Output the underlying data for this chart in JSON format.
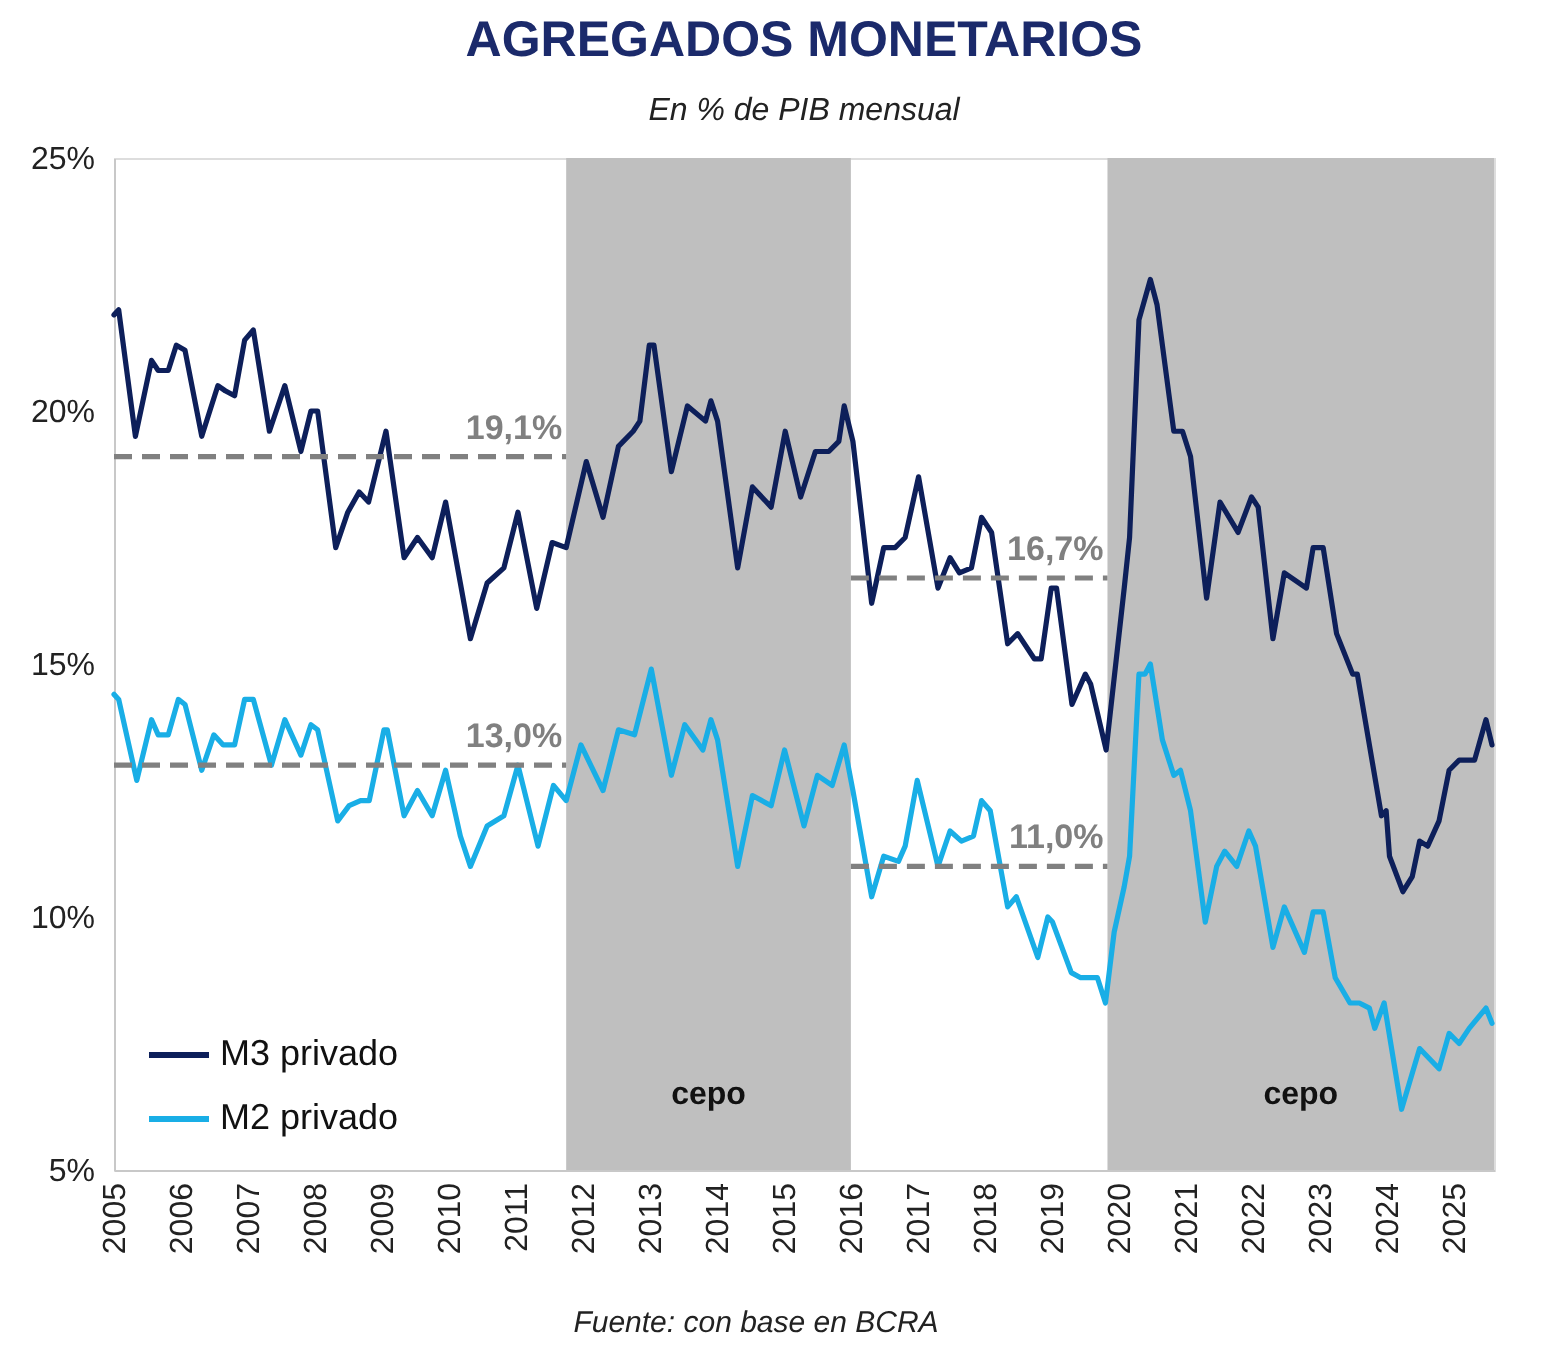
{
  "chart_data": {
    "type": "line",
    "title": "AGREGADOS MONETARIOS",
    "subtitle": "En % de PIB mensual",
    "annotations": [
      "Fuente: con base en BCRA"
    ],
    "xlim": [
      2005,
      2025.6
    ],
    "xticks": [
      2005,
      2006,
      2007,
      2008,
      2009,
      2010,
      2011,
      2012,
      2013,
      2014,
      2015,
      2016,
      2017,
      2018,
      2019,
      2020,
      2021,
      2022,
      2023,
      2024,
      2025
    ],
    "ylim": [
      5,
      25
    ],
    "yticks": [
      {
        "value": 5,
        "label": "5%"
      },
      {
        "value": 10,
        "label": "10%"
      },
      {
        "value": 15,
        "label": "15%"
      },
      {
        "value": 20,
        "label": "20%"
      },
      {
        "value": 25,
        "label": "25%"
      }
    ],
    "legend": "bottom left",
    "bands": [
      {
        "axis": "x",
        "from": 2011.75,
        "to": 2016.0,
        "label": "cepo",
        "color": "#bfbfbf"
      },
      {
        "axis": "x",
        "from": 2019.83,
        "to": 2025.6,
        "label": "cepo",
        "color": "#bfbfbf"
      }
    ],
    "series": [
      {
        "name": "M3 privado",
        "color": "#0d1f5a",
        "x": [
          2005.0,
          2005.07,
          2005.32,
          2005.56,
          2005.66,
          2005.81,
          2005.93,
          2006.06,
          2006.31,
          2006.55,
          2006.66,
          2006.8,
          2006.95,
          2007.08,
          2007.32,
          2007.55,
          2007.79,
          2007.94,
          2008.04,
          2008.31,
          2008.49,
          2008.66,
          2008.8,
          2009.06,
          2009.33,
          2009.53,
          2009.75,
          2009.95,
          2010.17,
          2010.32,
          2010.57,
          2010.82,
          2011.03,
          2011.31,
          2011.54,
          2011.75,
          2012.05,
          2012.3,
          2012.53,
          2012.75,
          2012.85,
          2012.99,
          2013.06,
          2013.32,
          2013.56,
          2013.83,
          2013.91,
          2014.01,
          2014.31,
          2014.53,
          2014.81,
          2015.02,
          2015.25,
          2015.47,
          2015.67,
          2015.82,
          2015.9,
          2016.03,
          2016.31,
          2016.49,
          2016.66,
          2016.81,
          2017.01,
          2017.3,
          2017.48,
          2017.62,
          2017.8,
          2017.95,
          2018.1,
          2018.34,
          2018.49,
          2018.74,
          2018.84,
          2018.99,
          2019.07,
          2019.3,
          2019.5,
          2019.58,
          2019.81,
          2020.08,
          2020.16,
          2020.3,
          2020.47,
          2020.57,
          2020.82,
          2020.95,
          2021.07,
          2021.31,
          2021.51,
          2021.78,
          2021.98,
          2022.08,
          2022.3,
          2022.47,
          2022.8,
          2022.9,
          2023.05,
          2023.25,
          2023.49,
          2023.56,
          2023.92,
          2023.99,
          2024.04,
          2024.24,
          2024.38,
          2024.49,
          2024.61,
          2024.78,
          2024.93,
          2025.08,
          2025.21,
          2025.31,
          2025.48,
          2025.57
        ],
        "values": [
          21.9,
          22.0,
          19.5,
          21.0,
          20.8,
          20.8,
          21.3,
          21.2,
          19.5,
          20.5,
          20.4,
          20.3,
          21.4,
          21.6,
          19.6,
          20.5,
          19.2,
          20.0,
          20.0,
          17.3,
          18.0,
          18.4,
          18.2,
          19.6,
          17.1,
          17.5,
          17.1,
          18.2,
          16.6,
          15.5,
          16.6,
          16.9,
          18.0,
          16.1,
          17.4,
          17.3,
          19.0,
          17.9,
          19.3,
          19.6,
          19.8,
          21.3,
          21.3,
          18.8,
          20.1,
          19.8,
          20.2,
          19.8,
          16.9,
          18.5,
          18.1,
          19.6,
          18.3,
          19.2,
          19.2,
          19.4,
          20.1,
          19.4,
          16.2,
          17.3,
          17.3,
          17.5,
          18.7,
          16.5,
          17.1,
          16.8,
          16.9,
          17.9,
          17.6,
          15.4,
          15.6,
          15.1,
          15.1,
          16.5,
          16.5,
          14.2,
          14.8,
          14.6,
          13.3,
          16.5,
          17.5,
          21.8,
          22.6,
          22.1,
          19.6,
          19.6,
          19.1,
          16.3,
          18.2,
          17.6,
          18.3,
          18.1,
          15.5,
          16.8,
          16.5,
          17.3,
          17.3,
          15.6,
          14.8,
          14.8,
          12.0,
          12.1,
          11.2,
          10.5,
          10.8,
          11.5,
          11.4,
          11.9,
          12.9,
          13.1,
          13.1,
          13.1,
          13.9,
          13.4
        ]
      },
      {
        "name": "M2 privado",
        "color": "#19aee6",
        "x": [
          2005.0,
          2005.07,
          2005.34,
          2005.56,
          2005.66,
          2005.81,
          2005.96,
          2006.06,
          2006.31,
          2006.49,
          2006.63,
          2006.8,
          2006.95,
          2007.08,
          2007.35,
          2007.55,
          2007.79,
          2007.94,
          2008.04,
          2008.34,
          2008.51,
          2008.68,
          2008.81,
          2009.03,
          2009.08,
          2009.33,
          2009.53,
          2009.75,
          2009.95,
          2010.17,
          2010.32,
          2010.57,
          2010.82,
          2011.03,
          2011.33,
          2011.56,
          2011.75,
          2011.97,
          2012.3,
          2012.53,
          2012.77,
          2013.02,
          2013.32,
          2013.52,
          2013.79,
          2013.91,
          2014.01,
          2014.31,
          2014.53,
          2014.81,
          2015.01,
          2015.3,
          2015.5,
          2015.72,
          2015.9,
          2016.03,
          2016.31,
          2016.49,
          2016.71,
          2016.81,
          2016.99,
          2017.3,
          2017.48,
          2017.65,
          2017.83,
          2017.95,
          2018.08,
          2018.34,
          2018.47,
          2018.79,
          2018.94,
          2019.01,
          2019.29,
          2019.43,
          2019.58,
          2019.68,
          2019.8,
          2019.93,
          2020.08,
          2020.16,
          2020.3,
          2020.39,
          2020.47,
          2020.65,
          2020.82,
          2020.92,
          2021.07,
          2021.29,
          2021.46,
          2021.58,
          2021.76,
          2021.94,
          2022.04,
          2022.3,
          2022.47,
          2022.77,
          2022.9,
          2023.05,
          2023.23,
          2023.45,
          2023.59,
          2023.74,
          2023.82,
          2023.96,
          2024.22,
          2024.49,
          2024.78,
          2024.93,
          2025.08,
          2025.23,
          2025.48,
          2025.57
        ],
        "values": [
          14.4,
          14.3,
          12.7,
          13.9,
          13.6,
          13.6,
          14.3,
          14.2,
          12.9,
          13.6,
          13.4,
          13.4,
          14.3,
          14.3,
          13.0,
          13.9,
          13.2,
          13.8,
          13.7,
          11.9,
          12.2,
          12.3,
          12.3,
          13.7,
          13.7,
          12.0,
          12.5,
          12.0,
          12.9,
          11.6,
          11.0,
          11.8,
          12.0,
          13.0,
          11.4,
          12.6,
          12.3,
          13.4,
          12.5,
          13.7,
          13.6,
          14.9,
          12.8,
          13.8,
          13.3,
          13.9,
          13.5,
          11.0,
          12.4,
          12.2,
          13.3,
          11.8,
          12.8,
          12.6,
          13.4,
          12.5,
          10.4,
          11.2,
          11.1,
          11.4,
          12.7,
          11.0,
          11.7,
          11.5,
          11.6,
          12.3,
          12.1,
          10.2,
          10.4,
          9.2,
          10.0,
          9.9,
          8.9,
          8.8,
          8.8,
          8.8,
          8.3,
          9.7,
          10.6,
          11.2,
          14.8,
          14.8,
          15.0,
          13.5,
          12.8,
          12.9,
          12.1,
          9.9,
          11.0,
          11.3,
          11.0,
          11.7,
          11.4,
          9.4,
          10.2,
          9.3,
          10.1,
          10.1,
          8.8,
          8.3,
          8.3,
          8.2,
          7.8,
          8.3,
          6.2,
          7.4,
          7.0,
          7.7,
          7.5,
          7.8,
          8.2,
          7.9
        ]
      },
      {
        "type": "line",
        "color": "#808080",
        "line_style": "dashed",
        "x": [
          2005,
          2011.75
        ],
        "values": [
          19.1,
          19.1
        ],
        "value_labels": [
          null,
          "19,1%"
        ]
      },
      {
        "type": "line",
        "color": "#808080",
        "line_style": "dashed",
        "x": [
          2005,
          2011.75
        ],
        "values": [
          13.0,
          13.0
        ],
        "value_labels": [
          null,
          "13,0%"
        ]
      },
      {
        "type": "line",
        "color": "#808080",
        "line_style": "dashed",
        "x": [
          2016.0,
          2019.83
        ],
        "values": [
          16.7,
          16.7
        ],
        "value_labels": [
          null,
          "16,7%"
        ]
      },
      {
        "type": "line",
        "color": "#808080",
        "line_style": "dashed",
        "x": [
          2016.0,
          2019.83
        ],
        "values": [
          11.0,
          11.0
        ],
        "value_labels": [
          null,
          "11,0%"
        ]
      }
    ]
  }
}
